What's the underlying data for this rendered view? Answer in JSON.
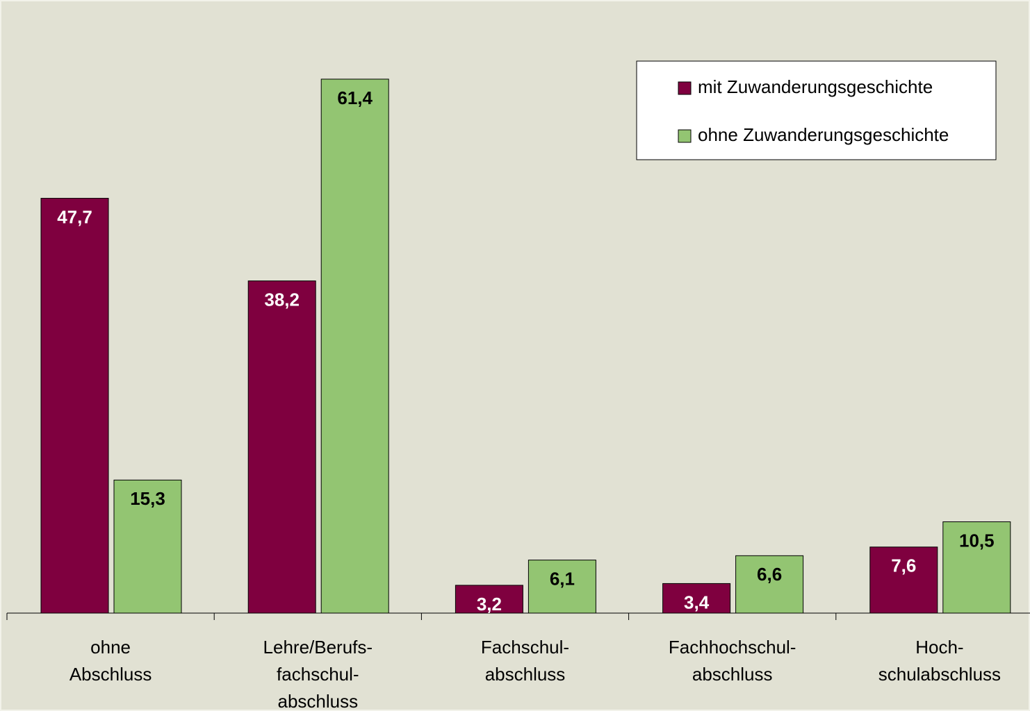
{
  "chart_data": {
    "type": "bar",
    "categories": [
      [
        "ohne",
        "Abschluss"
      ],
      [
        "Lehre/Berufs-",
        "fachschul-",
        "abschluss"
      ],
      [
        "Fachschul-",
        "abschluss"
      ],
      [
        "Fachhochschul-",
        "abschluss"
      ],
      [
        "Hoch-",
        "schulabschluss"
      ]
    ],
    "series": [
      {
        "name": "mit Zuwanderungsgeschichte",
        "color": "#7f003f",
        "values": [
          47.7,
          38.2,
          3.2,
          3.4,
          7.6
        ],
        "value_labels": [
          "47,7",
          "38,2",
          "3,2",
          "3,4",
          "7,6"
        ]
      },
      {
        "name": "ohne Zuwanderungsgeschichte",
        "color": "#93c572",
        "values": [
          15.3,
          61.4,
          6.1,
          6.6,
          10.5
        ],
        "value_labels": [
          "15,3",
          "61,4",
          "6,1",
          "6,6",
          "10,5"
        ]
      }
    ],
    "ylim": [
      0,
      70.1
    ],
    "legend": "top-right"
  }
}
